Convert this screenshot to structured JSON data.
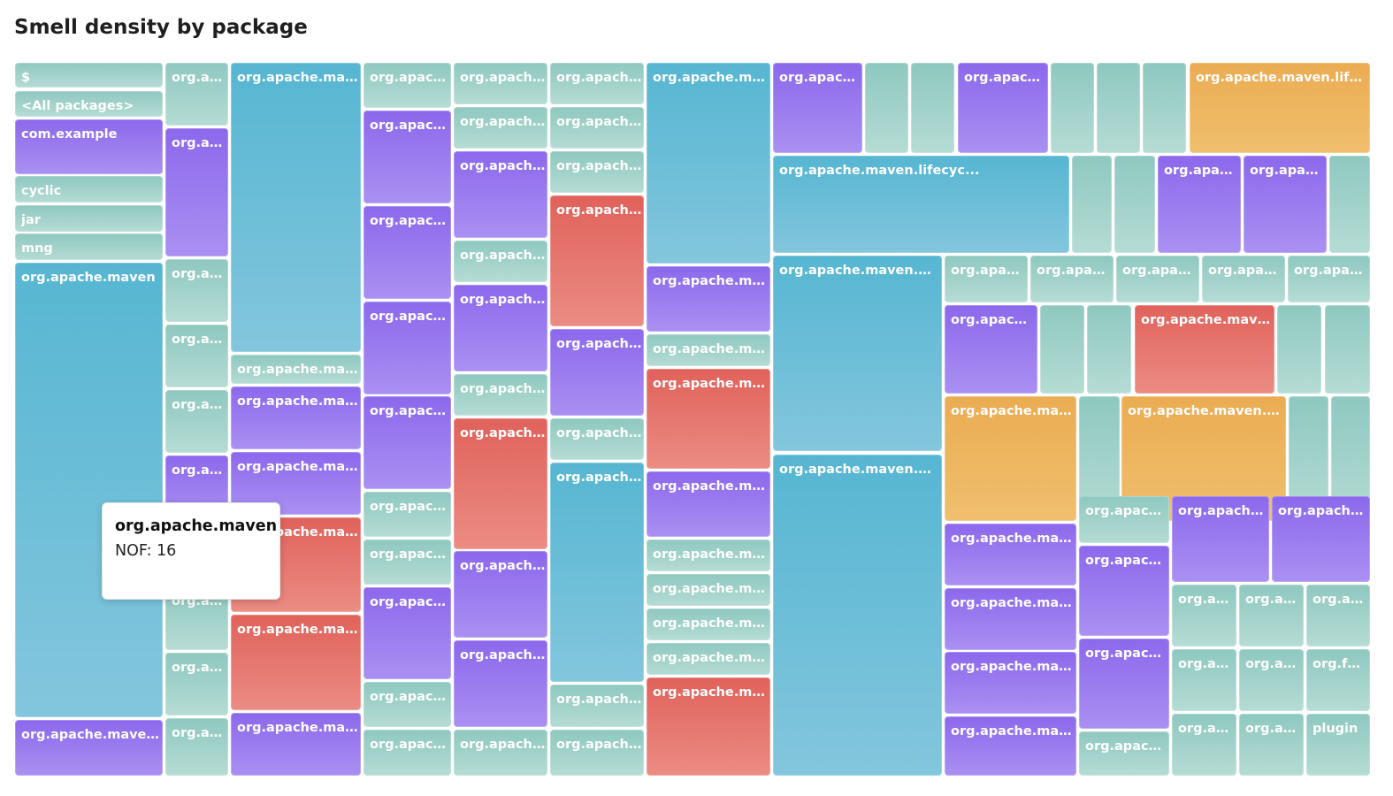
{
  "chart_data": {
    "type": "treemap",
    "title": "Smell density by package",
    "metric": "NOF",
    "color_scale": {
      "teal": "#9fd1c9",
      "blue": "#5fbad5",
      "purple": "#9477ee",
      "red": "#e46f67",
      "orange": "#edb55e"
    },
    "tooltip": {
      "title": "org.apache.maven",
      "value_text": "NOF: 16"
    },
    "tiles": [
      {
        "label": "$",
        "color": "teal"
      },
      {
        "label": "<All packages>",
        "color": "teal"
      },
      {
        "label": "com.example",
        "color": "purple"
      },
      {
        "label": "cyclic",
        "color": "teal"
      },
      {
        "label": "jar",
        "color": "teal"
      },
      {
        "label": "mng",
        "color": "teal"
      },
      {
        "label": "org.apache.maven",
        "color": "blue"
      },
      {
        "label": "org.apache.maven.api",
        "color": "purple"
      },
      {
        "label": "org.apache",
        "color": "teal"
      },
      {
        "label": "org.apache",
        "color": "purple"
      },
      {
        "label": "org.apache",
        "color": "teal"
      },
      {
        "label": "org.apache",
        "color": "teal"
      },
      {
        "label": "org.apache",
        "color": "teal"
      },
      {
        "label": "org.apache",
        "color": "purple"
      },
      {
        "label": "org.apache",
        "color": "teal"
      },
      {
        "label": "org.apache",
        "color": "teal"
      },
      {
        "label": "org.apache",
        "color": "teal"
      },
      {
        "label": "org.apache.maven.",
        "color": "blue"
      },
      {
        "label": "org.apache.maven.",
        "color": "teal"
      },
      {
        "label": "org.apache.maven.",
        "color": "purple"
      },
      {
        "label": "org.apache.maven.",
        "color": "purple"
      },
      {
        "label": "org.apache.maven.",
        "color": "red"
      },
      {
        "label": "org.apache.maven.",
        "color": "red"
      },
      {
        "label": "org.apache.maven.",
        "color": "purple"
      },
      {
        "label": "org.apache.m",
        "color": "teal"
      },
      {
        "label": "org.apache.m",
        "color": "purple"
      },
      {
        "label": "org.apache.m",
        "color": "purple"
      },
      {
        "label": "org.apache.m",
        "color": "purple"
      },
      {
        "label": "org.apache.m",
        "color": "purple"
      },
      {
        "label": "org.apache.m",
        "color": "teal"
      },
      {
        "label": "org.apache.m",
        "color": "teal"
      },
      {
        "label": "org.apache.m",
        "color": "purple"
      },
      {
        "label": "org.apache.m",
        "color": "teal"
      },
      {
        "label": "org.apache.m",
        "color": "teal"
      },
      {
        "label": "org.apache.m",
        "color": "teal"
      },
      {
        "label": "org.apache.m",
        "color": "teal"
      },
      {
        "label": "org.apache.m",
        "color": "purple"
      },
      {
        "label": "org.apache.m",
        "color": "teal"
      },
      {
        "label": "org.apache.m",
        "color": "purple"
      },
      {
        "label": "org.apache.m",
        "color": "teal"
      },
      {
        "label": "org.apache.m",
        "color": "red"
      },
      {
        "label": "org.apache.m",
        "color": "purple"
      },
      {
        "label": "org.apache.m",
        "color": "purple"
      },
      {
        "label": "org.apache.m",
        "color": "teal"
      },
      {
        "label": "org.apache.m",
        "color": "teal"
      },
      {
        "label": "org.apache.m",
        "color": "teal"
      },
      {
        "label": "org.apache.m",
        "color": "teal"
      },
      {
        "label": "org.apache.m",
        "color": "red"
      },
      {
        "label": "org.apache.m",
        "color": "purple"
      },
      {
        "label": "org.apache.m",
        "color": "teal"
      },
      {
        "label": "org.apache.m",
        "color": "blue"
      },
      {
        "label": "org.apache.m",
        "color": "teal"
      },
      {
        "label": "org.apache.m",
        "color": "teal"
      },
      {
        "label": "org.apache.maven",
        "color": "blue"
      },
      {
        "label": "org.apache.maven",
        "color": "purple"
      },
      {
        "label": "org.apache.maven",
        "color": "teal"
      },
      {
        "label": "org.apache.maven",
        "color": "red"
      },
      {
        "label": "org.apache.maven",
        "color": "purple"
      },
      {
        "label": "org.apache.maven",
        "color": "teal"
      },
      {
        "label": "org.apache.maven",
        "color": "teal"
      },
      {
        "label": "org.apache.maven",
        "color": "teal"
      },
      {
        "label": "org.apache.maven",
        "color": "teal"
      },
      {
        "label": "org.apache.maven",
        "color": "red"
      },
      {
        "label": "org.apache.m",
        "color": "purple"
      },
      {
        "label": "",
        "color": "teal"
      },
      {
        "label": "",
        "color": "teal"
      },
      {
        "label": "org.apache.m",
        "color": "purple"
      },
      {
        "label": "",
        "color": "teal"
      },
      {
        "label": "",
        "color": "teal"
      },
      {
        "label": "",
        "color": "teal"
      },
      {
        "label": "org.apache.maven.lifecyc...",
        "color": "orange"
      },
      {
        "label": "org.apache.maven.lifecyc...",
        "color": "blue"
      },
      {
        "label": "",
        "color": "teal"
      },
      {
        "label": "",
        "color": "teal"
      },
      {
        "label": "org.apache.",
        "color": "purple"
      },
      {
        "label": "org.apache.",
        "color": "purple"
      },
      {
        "label": "",
        "color": "teal"
      },
      {
        "label": "org.apache.maven.model",
        "color": "blue"
      },
      {
        "label": "org.apache.maven.model",
        "color": "blue"
      },
      {
        "label": "org.apache.",
        "color": "teal"
      },
      {
        "label": "org.apache.",
        "color": "teal"
      },
      {
        "label": "org.apache.",
        "color": "teal"
      },
      {
        "label": "org.apache.",
        "color": "teal"
      },
      {
        "label": "org.apache.",
        "color": "teal"
      },
      {
        "label": "org.apache.m",
        "color": "purple"
      },
      {
        "label": "",
        "color": "teal"
      },
      {
        "label": "",
        "color": "teal"
      },
      {
        "label": "org.apache.maven.m",
        "color": "red"
      },
      {
        "label": "",
        "color": "teal"
      },
      {
        "label": "",
        "color": "teal"
      },
      {
        "label": "org.apache.maven.",
        "color": "orange"
      },
      {
        "label": "",
        "color": "teal"
      },
      {
        "label": "org.apache.maven.proje",
        "color": "orange"
      },
      {
        "label": "",
        "color": "teal"
      },
      {
        "label": "",
        "color": "teal"
      },
      {
        "label": "org.apache.maven.",
        "color": "purple"
      },
      {
        "label": "org.apache.maven.",
        "color": "purple"
      },
      {
        "label": "org.apache.maven.",
        "color": "purple"
      },
      {
        "label": "org.apache.maven.",
        "color": "purple"
      },
      {
        "label": "org.apache.m",
        "color": "teal"
      },
      {
        "label": "org.apache.m",
        "color": "purple"
      },
      {
        "label": "org.apache.m",
        "color": "purple"
      },
      {
        "label": "org.apache.m",
        "color": "teal"
      },
      {
        "label": "org.apache.ma",
        "color": "purple"
      },
      {
        "label": "org.apache.ma",
        "color": "purple"
      },
      {
        "label": "org.apac",
        "color": "teal"
      },
      {
        "label": "org.apac",
        "color": "teal"
      },
      {
        "label": "org.apac",
        "color": "teal"
      },
      {
        "label": "org.apac",
        "color": "teal"
      },
      {
        "label": "org.apac",
        "color": "teal"
      },
      {
        "label": "org.fuses",
        "color": "teal"
      },
      {
        "label": "org.apac",
        "color": "teal"
      },
      {
        "label": "org.apac",
        "color": "teal"
      },
      {
        "label": "plugin",
        "color": "teal"
      }
    ]
  }
}
